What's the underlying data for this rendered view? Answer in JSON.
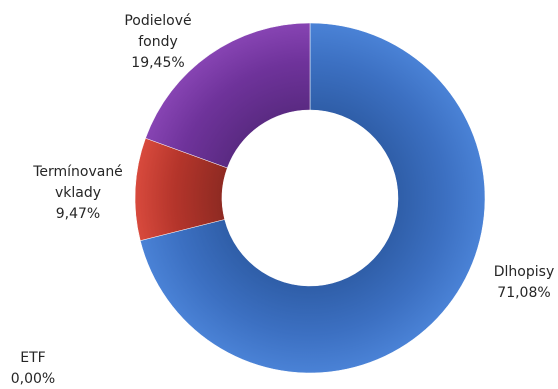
{
  "chart_data": {
    "type": "pie",
    "subtype": "donut",
    "title": "",
    "legend": "none",
    "slices": [
      {
        "name": "Dhlopisy",
        "value": 71.08,
        "value_label": "71,08%",
        "color": "#3f74c6"
      },
      {
        "name": "ETF",
        "value": 0.0,
        "value_label": "0,00%",
        "color": "#3f74c6"
      },
      {
        "name": "Termínované vklady",
        "value": 9.47,
        "value_label": "9,47%",
        "color": "#c0392b"
      },
      {
        "name": "Podielové fondy",
        "value": 19.45,
        "value_label": "19,45%",
        "color": "#7a3aa3"
      }
    ],
    "labels": {
      "dhlopisy": [
        "Dlhopisy",
        "71,08%"
      ],
      "etf": [
        "ETF",
        "0,00%"
      ],
      "terminovane": [
        "Termínované",
        "vklady",
        "9,47%"
      ],
      "podielove": [
        "Podielové",
        "fondy",
        "19,45%"
      ]
    }
  }
}
